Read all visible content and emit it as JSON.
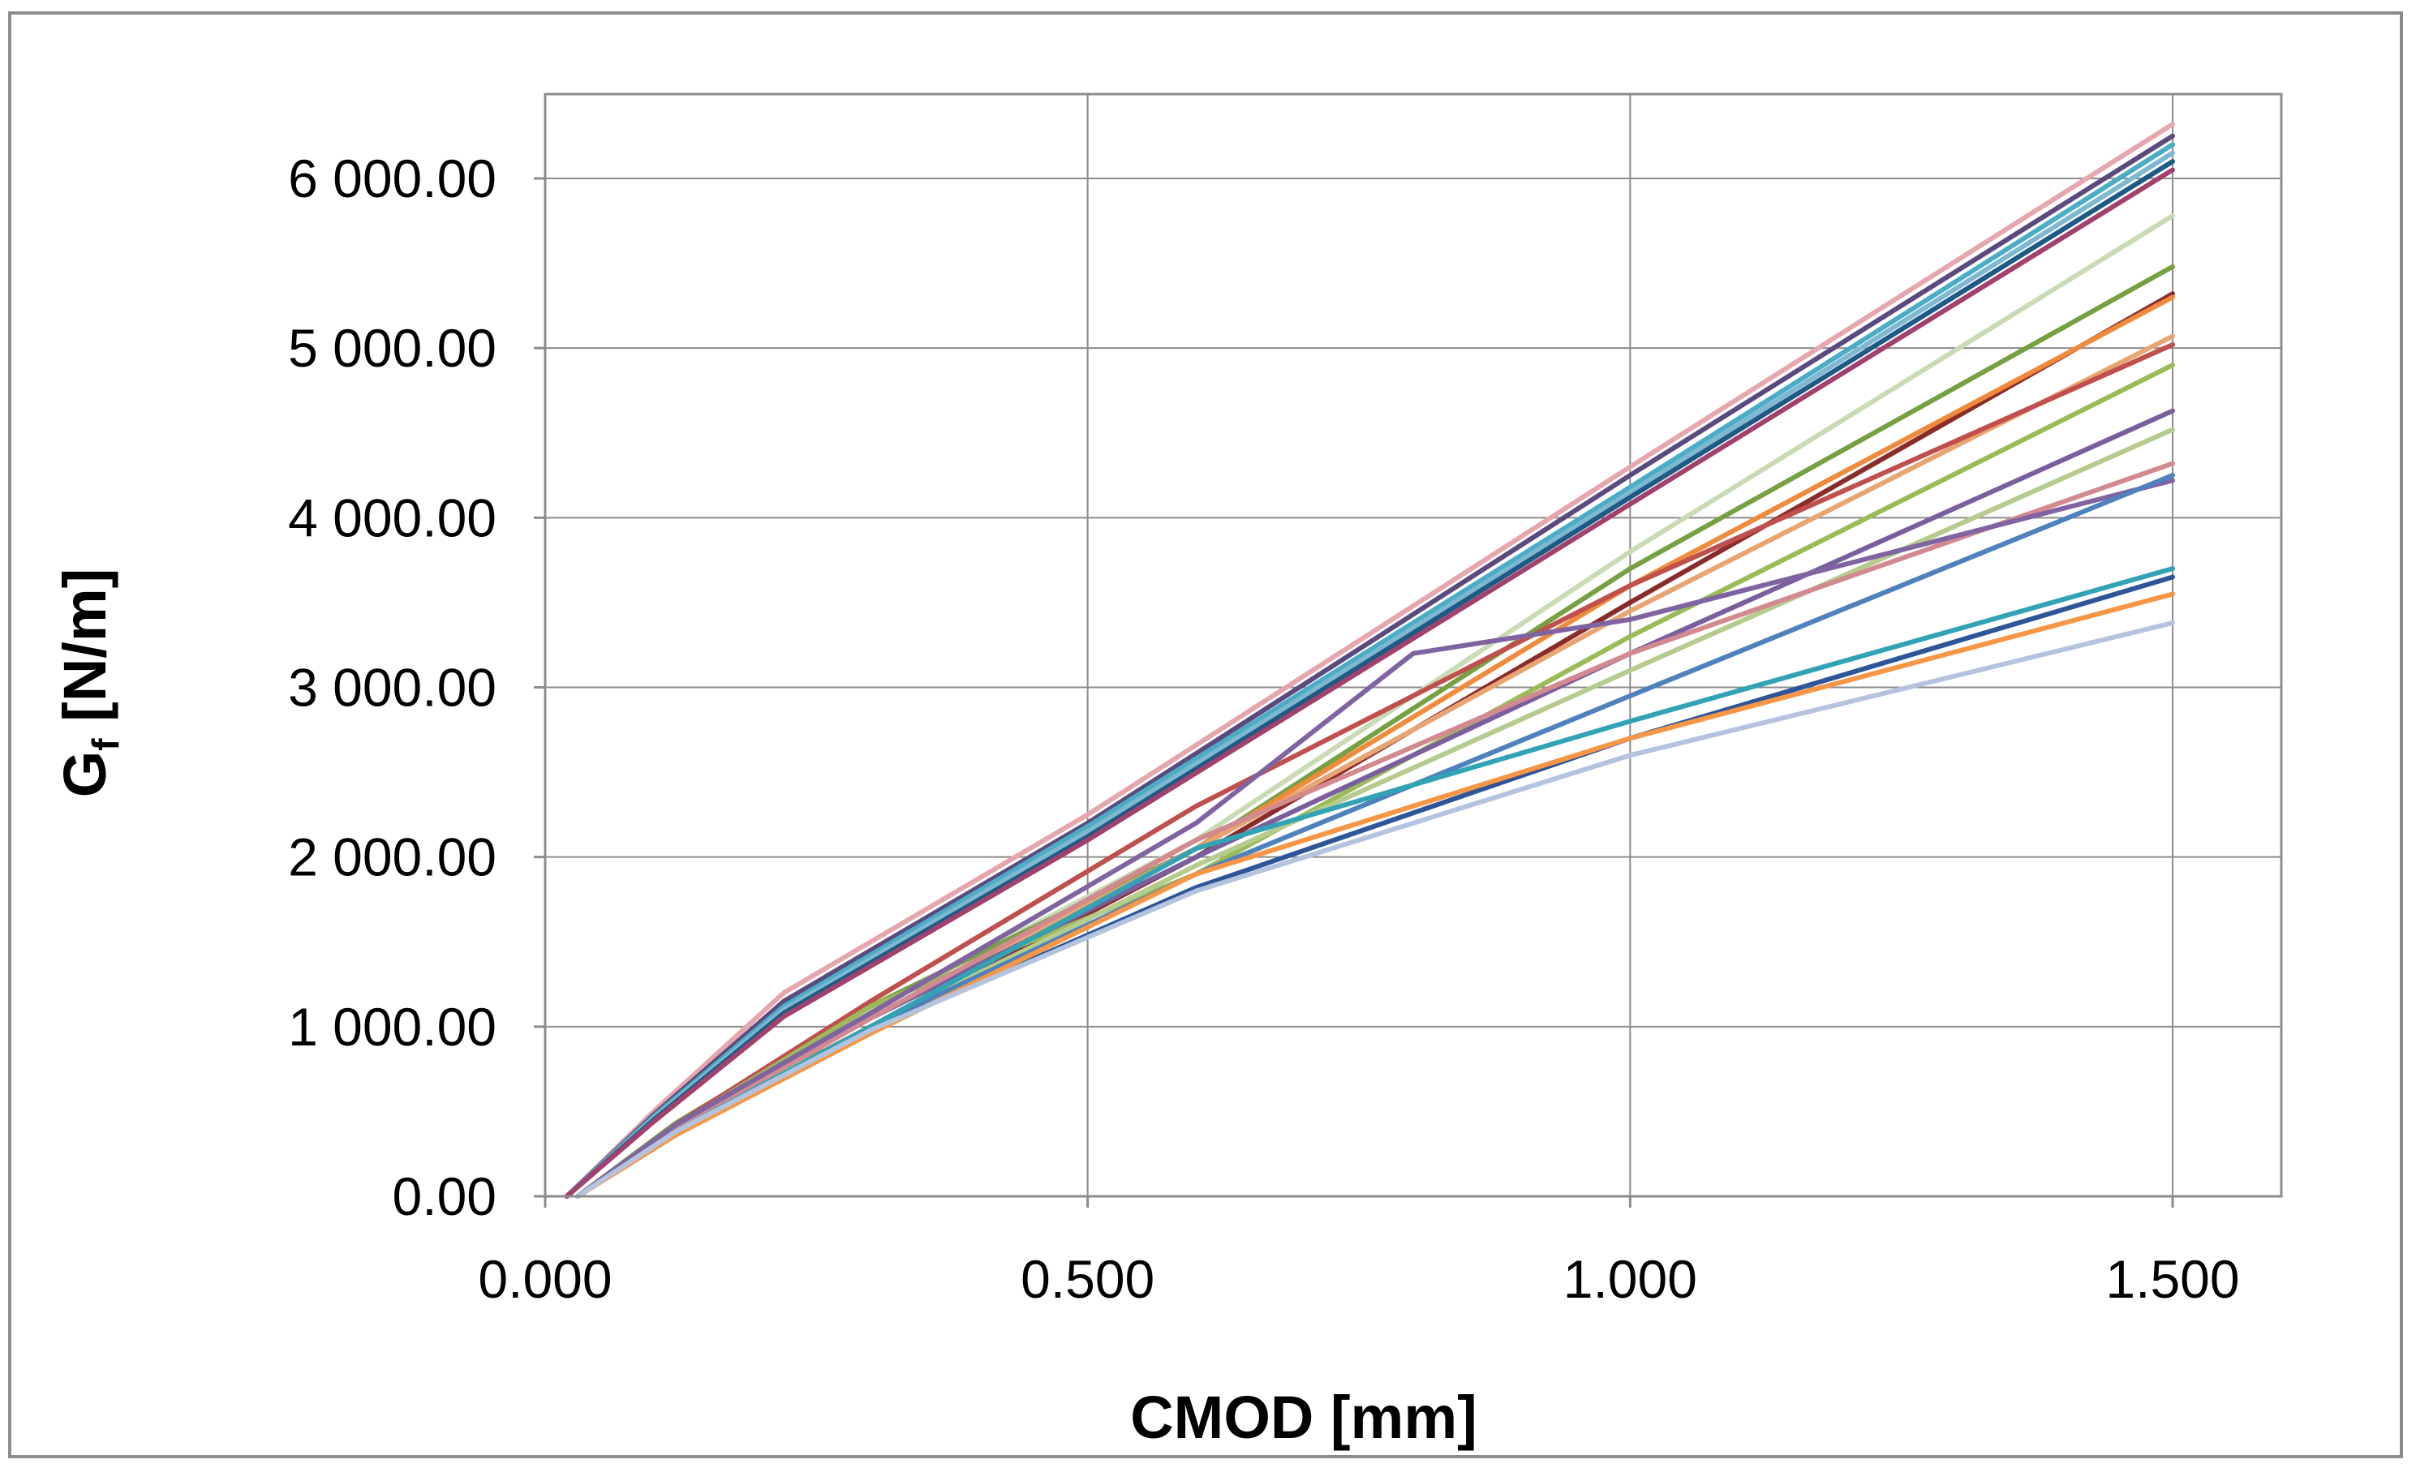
{
  "chart_data": {
    "type": "line",
    "title": "",
    "xlabel": "CMOD [mm]",
    "ylabel": {
      "main": "G",
      "sub": "f",
      "rest": " [N/m]"
    },
    "xlim": [
      0,
      1.6
    ],
    "ylim": [
      0,
      6000
    ],
    "x_ticks": [
      {
        "value": 0.0,
        "label": "0.000"
      },
      {
        "value": 0.5,
        "label": "0.500"
      },
      {
        "value": 1.0,
        "label": "1.000"
      },
      {
        "value": 1.5,
        "label": "1.500"
      }
    ],
    "y_ticks": [
      {
        "value": 0,
        "label": "0.00"
      },
      {
        "value": 1000,
        "label": "1 000.00"
      },
      {
        "value": 2000,
        "label": "2 000.00"
      },
      {
        "value": 3000,
        "label": "3 000.00"
      },
      {
        "value": 4000,
        "label": "4 000.00"
      },
      {
        "value": 5000,
        "label": "5 000.00"
      },
      {
        "value": 6000,
        "label": "6 000.00"
      }
    ],
    "grid": true,
    "legend": "none",
    "series": [
      {
        "color": "#E6A6AE",
        "x": [
          0.02,
          0.1,
          0.22,
          0.5,
          1.0,
          1.5
        ],
        "y": [
          0,
          500,
          1200,
          2250,
          4300,
          6320
        ]
      },
      {
        "color": "#5B4A7E",
        "x": [
          0.02,
          0.1,
          0.22,
          0.5,
          1.0,
          1.5
        ],
        "y": [
          0,
          480,
          1150,
          2200,
          4250,
          6250
        ]
      },
      {
        "color": "#4BACC6",
        "x": [
          0.02,
          0.1,
          0.22,
          0.5,
          1.0,
          1.5
        ],
        "y": [
          0,
          470,
          1120,
          2180,
          4180,
          6200
        ]
      },
      {
        "color": "#7FB8D0",
        "x": [
          0.02,
          0.1,
          0.22,
          0.5,
          1.0,
          1.5
        ],
        "y": [
          0,
          460,
          1100,
          2150,
          4150,
          6150
        ]
      },
      {
        "color": "#1F5A85",
        "x": [
          0.02,
          0.1,
          0.22,
          0.5,
          1.0,
          1.5
        ],
        "y": [
          0,
          450,
          1080,
          2120,
          4120,
          6100
        ]
      },
      {
        "color": "#A2416E",
        "x": [
          0.02,
          0.1,
          0.22,
          0.5,
          1.0,
          1.5
        ],
        "y": [
          0,
          440,
          1060,
          2100,
          4080,
          6050
        ]
      },
      {
        "color": "#C9DBB4",
        "x": [
          0.03,
          0.12,
          0.3,
          0.6,
          1.0,
          1.5
        ],
        "y": [
          0,
          430,
          1100,
          2100,
          3800,
          5780
        ]
      },
      {
        "color": "#77A043",
        "x": [
          0.03,
          0.12,
          0.3,
          0.6,
          1.0,
          1.5
        ],
        "y": [
          0,
          430,
          1120,
          2050,
          3700,
          5480
        ]
      },
      {
        "color": "#8B2C2C",
        "x": [
          0.03,
          0.12,
          0.3,
          0.6,
          1.0,
          1.5
        ],
        "y": [
          0,
          400,
          1000,
          2000,
          3500,
          5320
        ]
      },
      {
        "color": "#F08A3C",
        "x": [
          0.03,
          0.12,
          0.3,
          0.6,
          1.0,
          1.5
        ],
        "y": [
          0,
          380,
          1000,
          2050,
          3600,
          5300
        ]
      },
      {
        "color": "#E8A574",
        "x": [
          0.03,
          0.12,
          0.3,
          0.6,
          1.0,
          1.5
        ],
        "y": [
          0,
          390,
          1050,
          2050,
          3450,
          5070
        ]
      },
      {
        "color": "#C0504D",
        "x": [
          0.03,
          0.12,
          0.3,
          0.6,
          1.0,
          1.5
        ],
        "y": [
          0,
          420,
          1150,
          2300,
          3600,
          5020
        ]
      },
      {
        "color": "#9BBB59",
        "x": [
          0.03,
          0.12,
          0.3,
          0.6,
          1.0,
          1.5
        ],
        "y": [
          0,
          410,
          1120,
          1900,
          3300,
          4900
        ]
      },
      {
        "color": "#7A5F9F",
        "x": [
          0.03,
          0.12,
          0.3,
          0.6,
          1.0,
          1.5
        ],
        "y": [
          0,
          400,
          1050,
          2000,
          3200,
          4630
        ]
      },
      {
        "color": "#B5CC8E",
        "x": [
          0.03,
          0.12,
          0.3,
          0.6,
          1.0,
          1.5
        ],
        "y": [
          0,
          390,
          1000,
          1950,
          3100,
          4520
        ]
      },
      {
        "color": "#D28A90",
        "x": [
          0.03,
          0.12,
          0.3,
          0.6,
          1.0,
          1.5
        ],
        "y": [
          0,
          400,
          1050,
          2100,
          3200,
          4320
        ]
      },
      {
        "color": "#8064A2",
        "x": [
          0.03,
          0.12,
          0.3,
          0.6,
          0.8,
          1.0,
          1.5
        ],
        "y": [
          0,
          420,
          1080,
          2200,
          3200,
          3400,
          4220
        ]
      },
      {
        "color": "#4F81BD",
        "x": [
          0.03,
          0.12,
          0.3,
          0.6,
          1.0,
          1.5
        ],
        "y": [
          0,
          380,
          1000,
          1900,
          2950,
          4250
        ]
      },
      {
        "color": "#31A3B5",
        "x": [
          0.03,
          0.12,
          0.3,
          0.6,
          1.0,
          1.5
        ],
        "y": [
          0,
          380,
          1000,
          2050,
          2800,
          3700
        ]
      },
      {
        "color": "#2E5597",
        "x": [
          0.03,
          0.12,
          0.3,
          0.6,
          1.0,
          1.5
        ],
        "y": [
          0,
          370,
          980,
          1820,
          2700,
          3650
        ]
      },
      {
        "color": "#F79646",
        "x": [
          0.03,
          0.12,
          0.3,
          0.6,
          1.0,
          1.5
        ],
        "y": [
          0,
          360,
          960,
          1900,
          2700,
          3550
        ]
      },
      {
        "color": "#B4C4DE",
        "x": [
          0.03,
          0.12,
          0.3,
          0.6,
          1.0,
          1.5
        ],
        "y": [
          0,
          380,
          980,
          1800,
          2600,
          3380
        ]
      }
    ]
  }
}
